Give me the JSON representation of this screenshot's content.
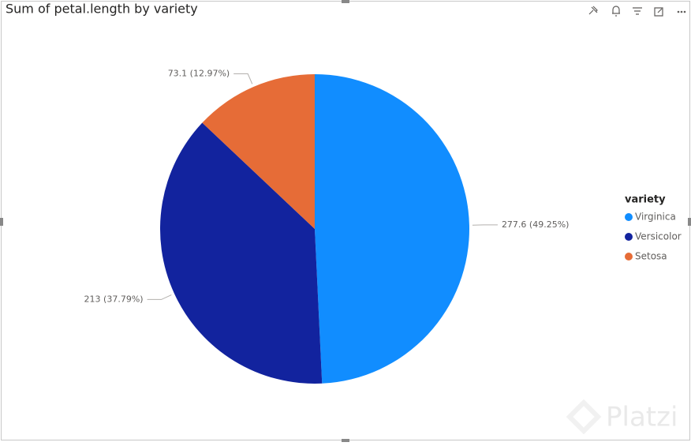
{
  "chart_data": {
    "type": "pie",
    "title": "Sum of petal.length by variety",
    "legend_title": "variety",
    "categories": [
      "Virginica",
      "Versicolor",
      "Setosa"
    ],
    "values": [
      277.6,
      213,
      73.1
    ],
    "value_labels": [
      "277.6 (49.25%)",
      "213 (37.79%)",
      "73.1 (12.97%)"
    ],
    "colors": [
      "#118DFF",
      "#12239E",
      "#E66C37"
    ],
    "legend_position": "right"
  },
  "watermark": "Platzi"
}
